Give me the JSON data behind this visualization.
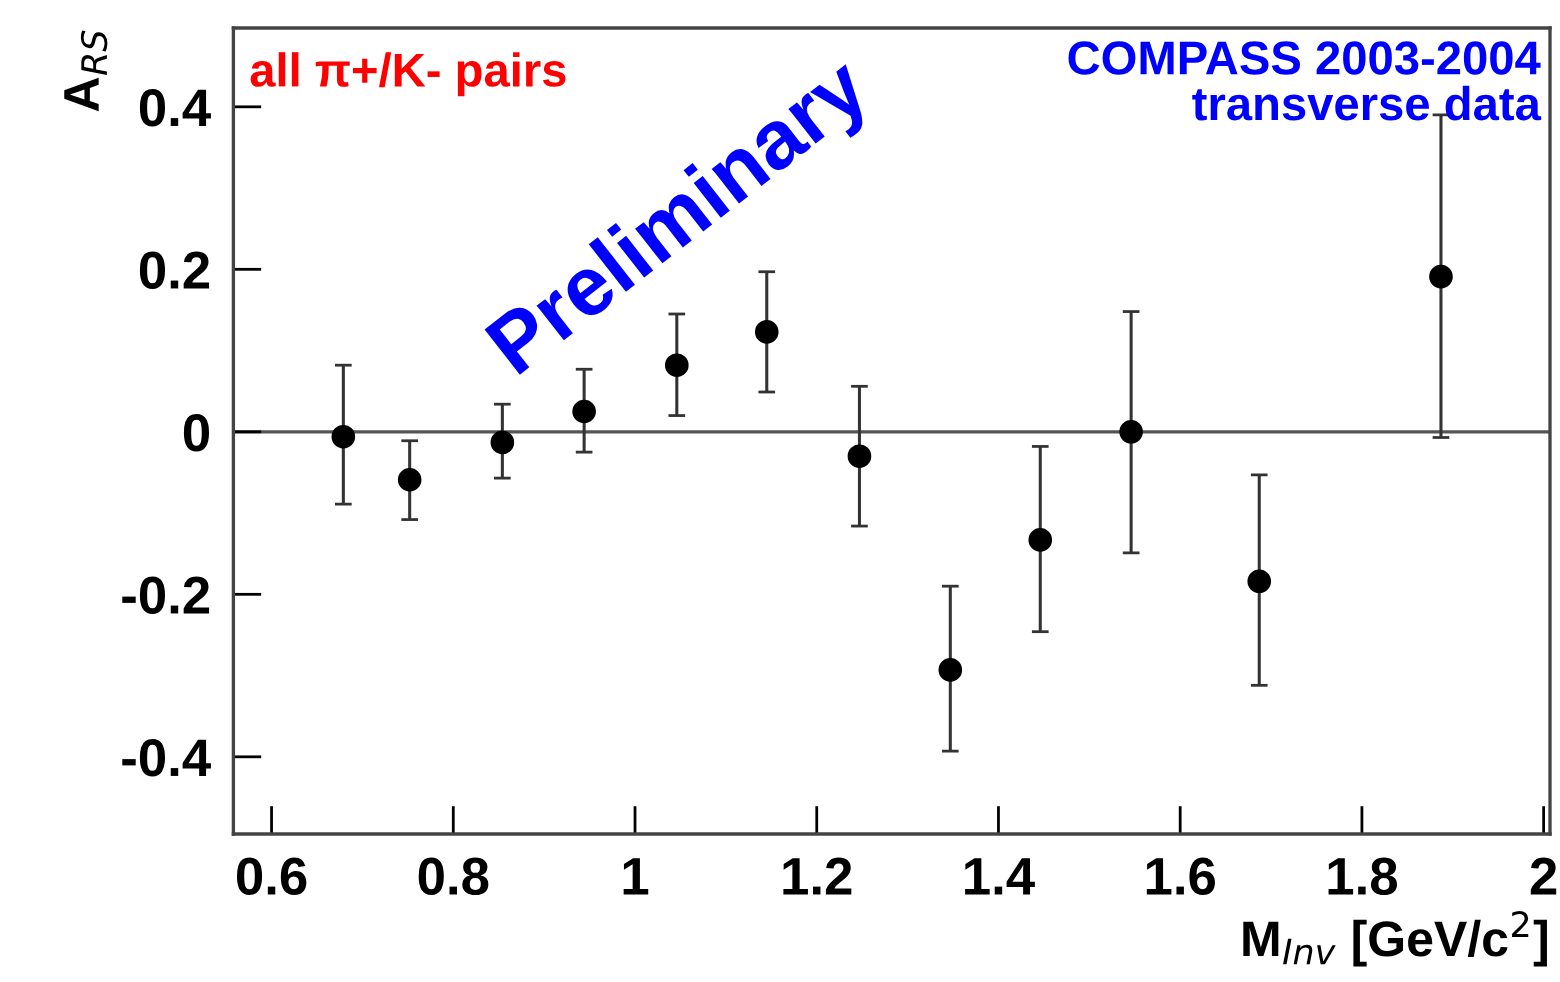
{
  "chart_data": {
    "type": "scatter",
    "xlabel": "M$_{Inv}$ [GeV/c$^{2}$]",
    "ylabel": "A$_{RS}$",
    "x": [
      0.679,
      0.752,
      0.854,
      0.944,
      1.046,
      1.145,
      1.247,
      1.347,
      1.446,
      1.546,
      1.687,
      1.887
    ],
    "series": [
      {
        "color": "#000000",
        "values": [
          -0.006,
          -0.059,
          -0.013,
          0.025,
          0.082,
          0.123,
          -0.03,
          -0.293,
          -0.133,
          0.0,
          -0.184,
          0.191
        ],
        "errors": [
          [
            -0.089,
            0.082
          ],
          [
            -0.108,
            -0.011
          ],
          [
            -0.057,
            0.034
          ],
          [
            -0.025,
            0.077
          ],
          [
            0.02,
            0.145
          ],
          [
            0.049,
            0.197
          ],
          [
            -0.116,
            0.056
          ],
          [
            -0.393,
            -0.19
          ],
          [
            -0.246,
            -0.018
          ],
          [
            -0.149,
            0.148
          ],
          [
            -0.312,
            -0.053
          ],
          [
            -0.007,
            0.39
          ]
        ]
      }
    ],
    "xlim": [
      0.558,
      2.007
    ],
    "ylim": [
      -0.495,
      0.497
    ],
    "xticks": [
      0.6,
      0.8,
      1,
      1.2,
      1.4,
      1.6,
      1.8,
      2
    ],
    "yticks": [
      -0.4,
      -0.2,
      0,
      0.2,
      0.4
    ],
    "ref_lines": [
      {
        "axis": "y",
        "value": 0,
        "color": "#555555"
      }
    ],
    "marker": "circle",
    "grid": false,
    "legend": false,
    "annotations": [
      "all π+/K- pairs",
      "COMPASS 2003-2004\ntransverse data",
      "Preliminary"
    ]
  }
}
